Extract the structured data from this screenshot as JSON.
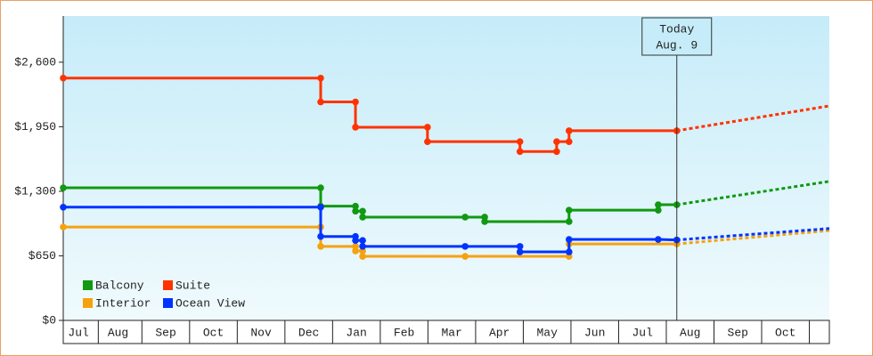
{
  "chart_data": {
    "type": "line",
    "step": true,
    "ylim": [
      0,
      3065
    ],
    "yticks": [
      {
        "value": 0,
        "label": "$0"
      },
      {
        "value": 650,
        "label": "$650"
      },
      {
        "value": 1300,
        "label": "$1,300"
      },
      {
        "value": 1950,
        "label": "$1,950"
      },
      {
        "value": 2600,
        "label": "$2,600"
      }
    ],
    "xlim": [
      0.35,
      16.42
    ],
    "xticks": [
      {
        "value": 0.67,
        "label": "Jul"
      },
      {
        "value": 1.5,
        "label": "Aug"
      },
      {
        "value": 2.5,
        "label": "Sep"
      },
      {
        "value": 3.5,
        "label": "Oct"
      },
      {
        "value": 4.5,
        "label": "Nov"
      },
      {
        "value": 5.5,
        "label": "Dec"
      },
      {
        "value": 6.5,
        "label": "Jan"
      },
      {
        "value": 7.5,
        "label": "Feb"
      },
      {
        "value": 8.5,
        "label": "Mar"
      },
      {
        "value": 9.5,
        "label": "Apr"
      },
      {
        "value": 10.5,
        "label": "May"
      },
      {
        "value": 11.5,
        "label": "Jun"
      },
      {
        "value": 12.5,
        "label": "Jul"
      },
      {
        "value": 13.5,
        "label": "Aug"
      },
      {
        "value": 14.5,
        "label": "Sep"
      },
      {
        "value": 15.5,
        "label": "Oct"
      }
    ],
    "annotation": {
      "x": 13.22,
      "lines": [
        "Today",
        "Aug. 9"
      ]
    },
    "series": [
      {
        "name": "Balcony",
        "color": "#119911",
        "x": [
          0.35,
          5.75,
          5.75,
          6.48,
          6.48,
          6.63,
          6.63,
          8.78,
          9.19,
          9.19,
          10.96,
          10.96,
          12.83,
          12.83,
          13.22
        ],
        "values": [
          1335,
          1335,
          1150,
          1150,
          1100,
          1100,
          1040,
          1040,
          1040,
          995,
          995,
          1110,
          1110,
          1165,
          1165
        ],
        "forecast": {
          "x": [
            13.22,
            16.42
          ],
          "values": [
            1165,
            1400
          ]
        }
      },
      {
        "name": "Suite",
        "color": "#ff3300",
        "x": [
          0.35,
          5.75,
          5.75,
          6.48,
          6.48,
          7.99,
          7.99,
          9.93,
          9.93,
          10.7,
          10.7,
          10.96,
          10.96,
          13.22
        ],
        "values": [
          2440,
          2440,
          2200,
          2200,
          1945,
          1945,
          1800,
          1800,
          1700,
          1700,
          1800,
          1800,
          1910,
          1910
        ],
        "forecast": {
          "x": [
            13.22,
            16.42
          ],
          "values": [
            1910,
            2160
          ]
        }
      },
      {
        "name": "Interior",
        "color": "#f5a20f",
        "x": [
          0.35,
          5.75,
          5.75,
          6.48,
          6.48,
          6.63,
          6.63,
          8.78,
          10.96,
          10.96,
          13.22
        ],
        "values": [
          940,
          940,
          745,
          745,
          700,
          700,
          645,
          645,
          645,
          770,
          770
        ],
        "forecast": {
          "x": [
            13.22,
            16.42
          ],
          "values": [
            770,
            905
          ]
        }
      },
      {
        "name": "Ocean View",
        "color": "#0033ff",
        "x": [
          0.35,
          5.75,
          5.75,
          6.48,
          6.48,
          6.63,
          6.63,
          8.78,
          9.93,
          9.93,
          10.96,
          10.96,
          12.83,
          13.22
        ],
        "values": [
          1140,
          1140,
          845,
          845,
          805,
          805,
          745,
          745,
          745,
          690,
          690,
          815,
          815,
          810
        ],
        "forecast": {
          "x": [
            13.22,
            16.42
          ],
          "values": [
            810,
            925
          ]
        }
      }
    ]
  }
}
